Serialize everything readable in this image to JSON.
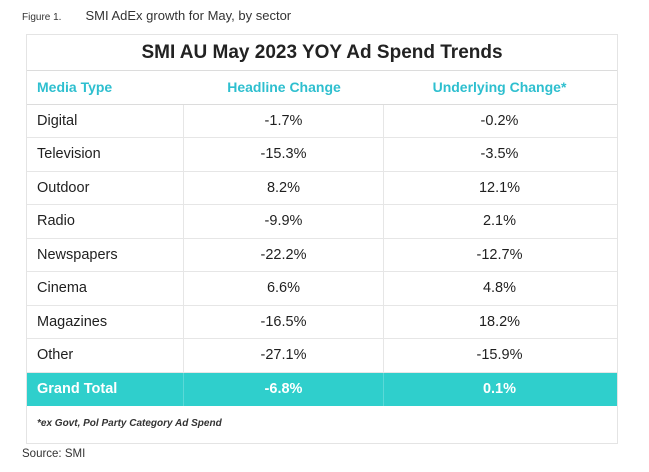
{
  "caption": {
    "figure_label": "Figure 1.",
    "title": "SMI AdEx growth for May, by sector"
  },
  "chart_data": {
    "type": "table",
    "title": "SMI AU May 2023 YOY Ad Spend Trends",
    "columns": [
      "Media Type",
      "Headline Change",
      "Underlying Change*"
    ],
    "rows": [
      [
        "Digital",
        "-1.7%",
        "-0.2%"
      ],
      [
        "Television",
        "-15.3%",
        "-3.5%"
      ],
      [
        "Outdoor",
        "8.2%",
        "12.1%"
      ],
      [
        "Radio",
        "-9.9%",
        "2.1%"
      ],
      [
        "Newspapers",
        "-22.2%",
        "-12.7%"
      ],
      [
        "Cinema",
        "6.6%",
        "4.8%"
      ],
      [
        "Magazines",
        "-16.5%",
        "18.2%"
      ],
      [
        "Other",
        "-27.1%",
        "-15.9%"
      ]
    ],
    "total": [
      "Grand Total",
      "-6.8%",
      "0.1%"
    ],
    "footnote": "*ex Govt, Pol Party Category Ad Spend"
  },
  "source": "Source: SMI",
  "colors": {
    "accent": "#2ebfcf",
    "total_row": "#2fcfcc"
  }
}
